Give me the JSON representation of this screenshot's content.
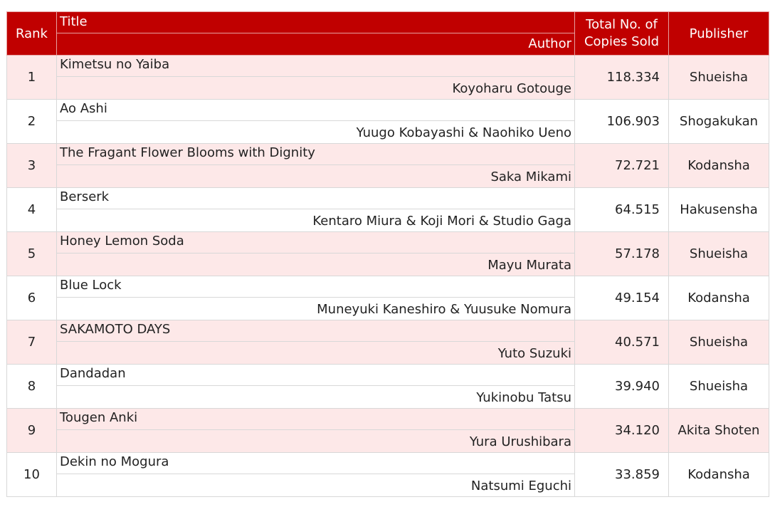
{
  "header": {
    "rank": "Rank",
    "title": "Title",
    "author": "Author",
    "copies": "Total No. of Copies Sold",
    "publisher": "Publisher"
  },
  "rows": [
    {
      "rank": "1",
      "title": "Kimetsu no Yaiba",
      "author": "Koyoharu Gotouge",
      "copies": "118.334",
      "publisher": "Shueisha"
    },
    {
      "rank": "2",
      "title": "Ao Ashi",
      "author": "Yuugo Kobayashi & Naohiko Ueno",
      "copies": "106.903",
      "publisher": "Shogakukan"
    },
    {
      "rank": "3",
      "title": "The Fragant Flower Blooms with Dignity",
      "author": "Saka Mikami",
      "copies": "72.721",
      "publisher": "Kodansha"
    },
    {
      "rank": "4",
      "title": "Berserk",
      "author": "Kentaro Miura & Koji Mori & Studio Gaga",
      "copies": "64.515",
      "publisher": "Hakusensha"
    },
    {
      "rank": "5",
      "title": "Honey Lemon Soda",
      "author": "Mayu Murata",
      "copies": "57.178",
      "publisher": "Shueisha"
    },
    {
      "rank": "6",
      "title": "Blue Lock",
      "author": "Muneyuki Kaneshiro & Yuusuke Nomura",
      "copies": "49.154",
      "publisher": "Kodansha"
    },
    {
      "rank": "7",
      "title": "SAKAMOTO DAYS",
      "author": "Yuto Suzuki",
      "copies": "40.571",
      "publisher": "Shueisha"
    },
    {
      "rank": "8",
      "title": "Dandadan",
      "author": "Yukinobu Tatsu",
      "copies": "39.940",
      "publisher": "Shueisha"
    },
    {
      "rank": "9",
      "title": "Tougen Anki",
      "author": "Yura Urushibara",
      "copies": "34.120",
      "publisher": "Akita Shoten"
    },
    {
      "rank": "10",
      "title": "Dekin no Mogura",
      "author": "Natsumi Eguchi",
      "copies": "33.859",
      "publisher": "Kodansha"
    }
  ],
  "colors": {
    "header_bg": "#c00000",
    "row_odd_bg": "#fde8e8",
    "row_even_bg": "#ffffff"
  }
}
